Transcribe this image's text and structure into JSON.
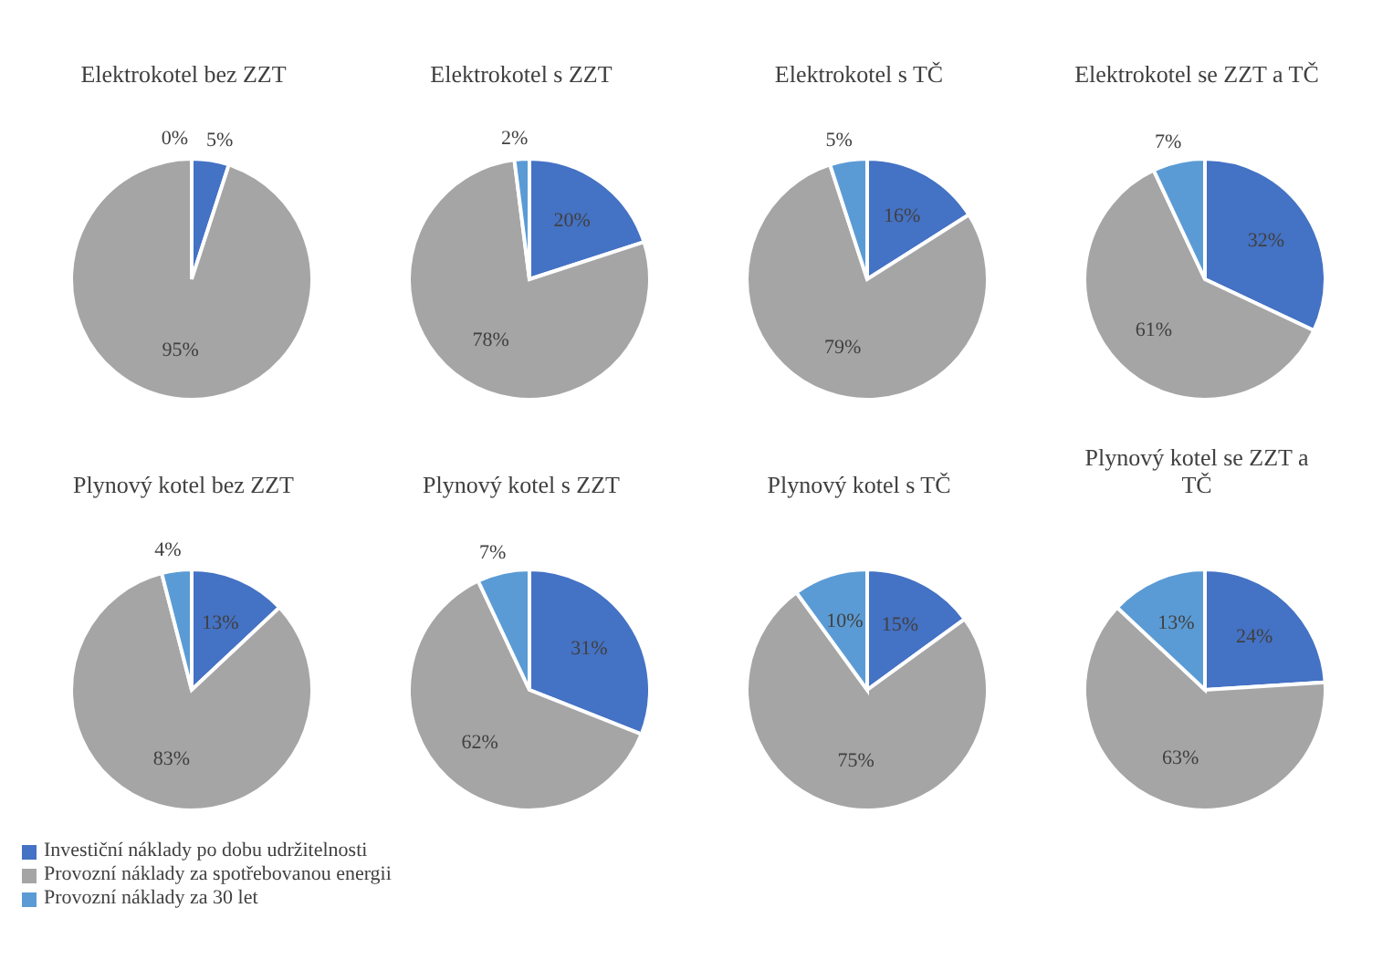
{
  "chart_data": [
    {
      "type": "pie",
      "title": "Elektrokotel bez ZZT",
      "categories": [
        "Investiční náklady po dobu udržitelnosti",
        "Provozní náklady za spotřebovanou energii",
        "Provozní náklady za 30 let"
      ],
      "values": [
        5,
        95,
        0
      ],
      "value_labels": [
        "5%",
        "95%",
        "0%"
      ],
      "colors": [
        "#4472c4",
        "#a5a5a5",
        "#5b9bd5"
      ],
      "legend": "bottom"
    },
    {
      "type": "pie",
      "title": "Elektrokotel s ZZT",
      "values": [
        20,
        78,
        2
      ],
      "value_labels": [
        "20%",
        "78%",
        "2%"
      ],
      "colors": [
        "#4472c4",
        "#a5a5a5",
        "#5b9bd5"
      ]
    },
    {
      "type": "pie",
      "title": "Elektrokotel s TČ",
      "values": [
        16,
        79,
        5
      ],
      "value_labels": [
        "16%",
        "79%",
        "5%"
      ],
      "colors": [
        "#4472c4",
        "#a5a5a5",
        "#5b9bd5"
      ]
    },
    {
      "type": "pie",
      "title": "Elektrokotel se ZZT a TČ",
      "values": [
        32,
        61,
        7
      ],
      "value_labels": [
        "32%",
        "61%",
        "7%"
      ],
      "colors": [
        "#4472c4",
        "#a5a5a5",
        "#5b9bd5"
      ]
    },
    {
      "type": "pie",
      "title": "Plynový kotel bez ZZT",
      "values": [
        13,
        83,
        4
      ],
      "value_labels": [
        "13%",
        "83%",
        "4%"
      ],
      "colors": [
        "#4472c4",
        "#a5a5a5",
        "#5b9bd5"
      ]
    },
    {
      "type": "pie",
      "title": "Plynový kotel s ZZT",
      "values": [
        31,
        62,
        7
      ],
      "value_labels": [
        "31%",
        "62%",
        "7%"
      ],
      "colors": [
        "#4472c4",
        "#a5a5a5",
        "#5b9bd5"
      ]
    },
    {
      "type": "pie",
      "title": "Plynový kotel s TČ",
      "values": [
        15,
        75,
        10
      ],
      "value_labels": [
        "15%",
        "75%",
        "10%"
      ],
      "colors": [
        "#4472c4",
        "#a5a5a5",
        "#5b9bd5"
      ]
    },
    {
      "type": "pie",
      "title": "Plynový kotel se ZZT a TČ",
      "values": [
        24,
        63,
        13
      ],
      "value_labels": [
        "24%",
        "63%",
        "13%"
      ],
      "colors": [
        "#4472c4",
        "#a5a5a5",
        "#5b9bd5"
      ]
    }
  ]
}
